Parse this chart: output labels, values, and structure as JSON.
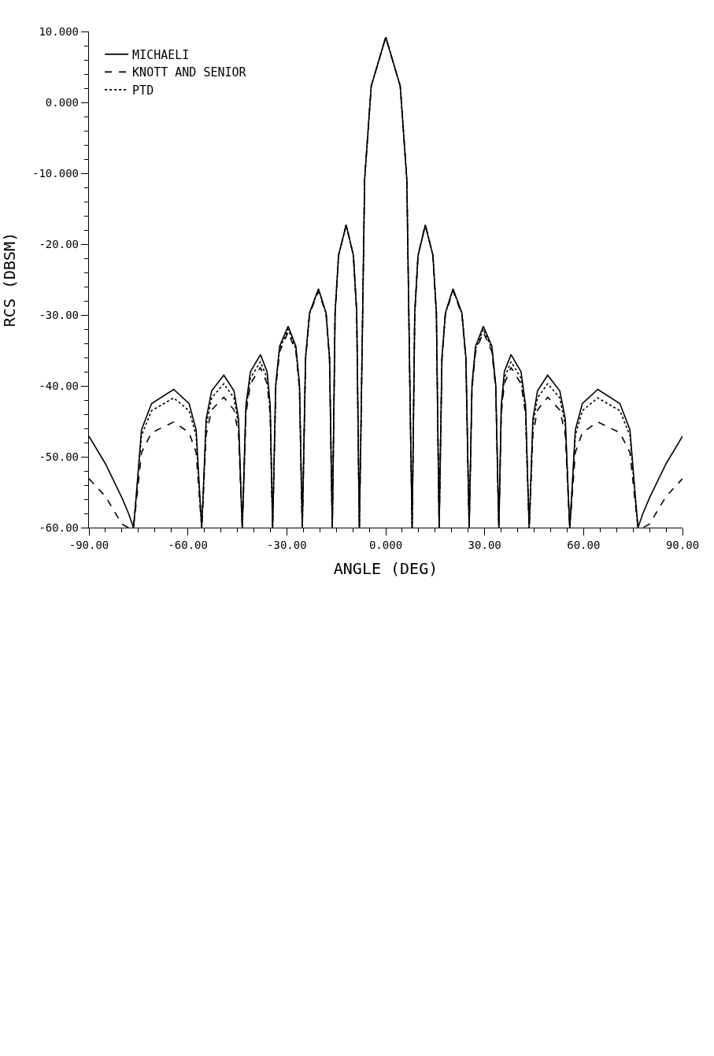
{
  "chart_data": {
    "type": "line",
    "xlabel": "ANGLE (DEG)",
    "ylabel": "RCS (DBSM)",
    "xlim": [
      -90,
      90
    ],
    "ylim": [
      -60,
      10
    ],
    "xticks": [
      {
        "value": -90,
        "label": "-90.00"
      },
      {
        "value": -85,
        "label": null
      },
      {
        "value": -80,
        "label": null
      },
      {
        "value": -75,
        "label": null
      },
      {
        "value": -70,
        "label": null
      },
      {
        "value": -65,
        "label": null
      },
      {
        "value": -60,
        "label": "-60.00"
      },
      {
        "value": -55,
        "label": null
      },
      {
        "value": -50,
        "label": null
      },
      {
        "value": -45,
        "label": null
      },
      {
        "value": -40,
        "label": null
      },
      {
        "value": -35,
        "label": null
      },
      {
        "value": -30,
        "label": "-30.00"
      },
      {
        "value": -25,
        "label": null
      },
      {
        "value": -20,
        "label": null
      },
      {
        "value": -15,
        "label": null
      },
      {
        "value": -10,
        "label": null
      },
      {
        "value": -5,
        "label": null
      },
      {
        "value": 0,
        "label": "0.000"
      },
      {
        "value": 5,
        "label": null
      },
      {
        "value": 10,
        "label": null
      },
      {
        "value": 15,
        "label": null
      },
      {
        "value": 20,
        "label": null
      },
      {
        "value": 25,
        "label": null
      },
      {
        "value": 30,
        "label": "30.00"
      },
      {
        "value": 35,
        "label": null
      },
      {
        "value": 40,
        "label": null
      },
      {
        "value": 45,
        "label": null
      },
      {
        "value": 50,
        "label": null
      },
      {
        "value": 55,
        "label": null
      },
      {
        "value": 60,
        "label": "60.00"
      },
      {
        "value": 65,
        "label": null
      },
      {
        "value": 70,
        "label": null
      },
      {
        "value": 75,
        "label": null
      },
      {
        "value": 80,
        "label": null
      },
      {
        "value": 85,
        "label": null
      },
      {
        "value": 90,
        "label": "90.00"
      }
    ],
    "yticks": [
      {
        "value": -60,
        "label": "-60.00"
      },
      {
        "value": -58,
        "label": null
      },
      {
        "value": -56,
        "label": null
      },
      {
        "value": -54,
        "label": null
      },
      {
        "value": -52,
        "label": null
      },
      {
        "value": -50,
        "label": "-50.00"
      },
      {
        "value": -48,
        "label": null
      },
      {
        "value": -46,
        "label": null
      },
      {
        "value": -44,
        "label": null
      },
      {
        "value": -42,
        "label": null
      },
      {
        "value": -40,
        "label": "-40.00"
      },
      {
        "value": -38,
        "label": null
      },
      {
        "value": -36,
        "label": null
      },
      {
        "value": -34,
        "label": null
      },
      {
        "value": -32,
        "label": null
      },
      {
        "value": -30,
        "label": "-30.00"
      },
      {
        "value": -28,
        "label": null
      },
      {
        "value": -26,
        "label": null
      },
      {
        "value": -24,
        "label": null
      },
      {
        "value": -22,
        "label": null
      },
      {
        "value": -20,
        "label": "-20.00"
      },
      {
        "value": -18,
        "label": null
      },
      {
        "value": -16,
        "label": null
      },
      {
        "value": -14,
        "label": null
      },
      {
        "value": -12,
        "label": null
      },
      {
        "value": -10,
        "label": "-10.000"
      },
      {
        "value": -8,
        "label": null
      },
      {
        "value": -6,
        "label": null
      },
      {
        "value": -4,
        "label": null
      },
      {
        "value": -2,
        "label": null
      },
      {
        "value": 0,
        "label": "0.000"
      },
      {
        "value": 2,
        "label": null
      },
      {
        "value": 4,
        "label": null
      },
      {
        "value": 6,
        "label": null
      },
      {
        "value": 8,
        "label": null
      },
      {
        "value": 10,
        "label": "10.000"
      }
    ],
    "legend": "top left",
    "marker": "none",
    "x": [
      -90,
      -85,
      -80,
      -78,
      -76.5,
      -75.77,
      -74.06,
      -71.01,
      -64.3,
      -59.63,
      -57.5,
      -56.31,
      -55.8,
      -55.4,
      -54.46,
      -52.79,
      -49.1,
      -46.02,
      -44.62,
      -43.84,
      -43.5,
      -43.17,
      -42.4,
      -41.03,
      -38,
      -35.97,
      -35.04,
      -34.52,
      -34.3,
      -34.02,
      -33.36,
      -32.19,
      -29.6,
      -27.24,
      -26.16,
      -25.56,
      -25.3,
      -25.01,
      -24.32,
      -23.1,
      -20.4,
      -18.09,
      -17.04,
      -16.45,
      -16.2,
      -15.95,
      -15.36,
      -14.31,
      -12,
      -9.8,
      -8.8,
      -8.24,
      -8,
      -7.52,
      -6.4,
      -4.4,
      0,
      4.4,
      6.4,
      7.52,
      8,
      8.24,
      8.8,
      9.8,
      12,
      14.31,
      15.36,
      15.95,
      16.2,
      16.45,
      17.04,
      18.09,
      20.4,
      23.1,
      24.32,
      25.01,
      25.3,
      25.56,
      26.16,
      27.24,
      29.6,
      32.19,
      33.36,
      34.02,
      34.3,
      34.52,
      35.04,
      35.97,
      38,
      41.03,
      42.4,
      43.17,
      43.5,
      43.84,
      44.62,
      46.02,
      49.1,
      52.79,
      54.46,
      55.4,
      55.8,
      56.31,
      57.5,
      59.63,
      64.3,
      71.01,
      74.06,
      75.77,
      76.5,
      78,
      80,
      85,
      90
    ],
    "series": [
      {
        "name": "MICHAELI",
        "color": "#000000",
        "line_style": "solid",
        "values": [
          -47.1,
          -51.0,
          -55.8,
          -58.0,
          -60,
          -56.1,
          -46.2,
          -42.5,
          -40.5,
          -42.5,
          -46.2,
          -56.1,
          -60,
          -55.7,
          -44.7,
          -40.7,
          -38.5,
          -40.7,
          -44.7,
          -55.7,
          -60,
          -55.1,
          -42.7,
          -38.0,
          -35.6,
          -38.0,
          -42.7,
          -55.1,
          -60,
          -54.3,
          -39.8,
          -34.4,
          -31.6,
          -34.4,
          -39.8,
          -54.3,
          -60,
          -53.3,
          -36.1,
          -29.7,
          -26.3,
          -29.7,
          -36.1,
          -53.3,
          -60,
          -51.5,
          -29.7,
          -21.6,
          -17.3,
          -21.6,
          -29.7,
          -51.5,
          -60,
          -46.2,
          -10.9,
          2.3,
          9.2,
          2.3,
          -10.9,
          -46.2,
          -60,
          -51.5,
          -29.7,
          -21.6,
          -17.3,
          -21.6,
          -29.7,
          -51.5,
          -60,
          -53.3,
          -36.1,
          -29.7,
          -26.3,
          -29.7,
          -36.1,
          -53.3,
          -60,
          -54.3,
          -39.8,
          -34.4,
          -31.6,
          -34.4,
          -39.8,
          -54.3,
          -60,
          -55.1,
          -42.7,
          -38.0,
          -35.6,
          -38.0,
          -42.7,
          -55.1,
          -60,
          -55.7,
          -44.7,
          -40.7,
          -38.5,
          -40.7,
          -44.7,
          -55.7,
          -60,
          -56.1,
          -46.2,
          -42.5,
          -40.5,
          -42.5,
          -46.2,
          -56.1,
          -60,
          -58.0,
          -55.8,
          -51.0,
          -47.1
        ]
      },
      {
        "name": "KNOTT AND SENIOR",
        "color": "#000000",
        "line_style": "dashed",
        "values": [
          -53.1,
          -55.6,
          -59.5,
          -60,
          -60,
          -57.0,
          -49.4,
          -46.6,
          -45.1,
          -46.6,
          -49.4,
          -57.0,
          -60,
          -56.3,
          -46.9,
          -43.4,
          -41.6,
          -43.4,
          -46.9,
          -56.3,
          -60,
          -55.5,
          -44.0,
          -39.7,
          -37.4,
          -39.7,
          -44.0,
          -55.5,
          -60,
          -54.5,
          -40.4,
          -35.2,
          -32.4,
          -35.2,
          -40.4,
          -54.5,
          -60,
          -53.3,
          -36.3,
          -29.9,
          -26.6,
          -29.9,
          -36.3,
          -53.3,
          -60,
          -51.5,
          -29.7,
          -21.6,
          -17.3,
          -21.6,
          -29.7,
          -51.5,
          -60,
          -46.2,
          -10.9,
          2.3,
          9.2,
          2.3,
          -10.9,
          -46.2,
          -60,
          -51.5,
          -29.7,
          -21.6,
          -17.3,
          -21.6,
          -29.7,
          -51.5,
          -60,
          -53.3,
          -36.3,
          -29.9,
          -26.6,
          -29.9,
          -36.3,
          -53.3,
          -60,
          -54.5,
          -40.4,
          -35.2,
          -32.4,
          -35.2,
          -40.4,
          -54.5,
          -60,
          -55.5,
          -44.0,
          -39.7,
          -37.4,
          -39.7,
          -44.0,
          -55.5,
          -60,
          -56.3,
          -46.9,
          -43.4,
          -41.6,
          -43.4,
          -46.9,
          -56.3,
          -60,
          -57.0,
          -49.4,
          -46.6,
          -45.1,
          -46.6,
          -49.4,
          -57.0,
          -60,
          -60,
          -59.5,
          -55.6,
          -53.1
        ]
      },
      {
        "name": "PTD",
        "color": "#000000",
        "line_style": "dotted",
        "values": [
          null,
          null,
          null,
          null,
          -60,
          -56.3,
          -47.0,
          -43.5,
          -41.7,
          -43.5,
          -47.0,
          -56.3,
          -60,
          -55.9,
          -45.6,
          -41.7,
          -39.7,
          -41.7,
          -45.6,
          -55.9,
          -60,
          -55.3,
          -43.4,
          -38.9,
          -36.6,
          -38.9,
          -43.4,
          -55.3,
          -60,
          -54.4,
          -40.1,
          -34.8,
          -32.0,
          -34.8,
          -40.1,
          -54.4,
          -60,
          -53.3,
          -36.1,
          -29.8,
          -26.4,
          -29.8,
          -36.1,
          -53.3,
          -60,
          -51.5,
          -29.7,
          -21.6,
          -17.3,
          -21.6,
          -29.7,
          -51.5,
          -60,
          -46.2,
          -10.9,
          2.3,
          9.2,
          2.3,
          -10.9,
          -46.2,
          -60,
          -51.5,
          -29.7,
          -21.6,
          -17.3,
          -21.6,
          -29.7,
          -51.5,
          -60,
          -53.3,
          -36.1,
          -29.8,
          -26.4,
          -29.8,
          -36.1,
          -53.3,
          -60,
          -54.4,
          -40.1,
          -34.8,
          -32.0,
          -34.8,
          -40.1,
          -54.4,
          -60,
          -55.3,
          -43.4,
          -38.9,
          -36.6,
          -38.9,
          -43.4,
          -55.3,
          -60,
          -55.9,
          -45.6,
          -41.7,
          -39.7,
          -41.7,
          -45.6,
          -55.9,
          -60,
          -56.3,
          -47.0,
          -43.5,
          -41.7,
          -43.5,
          -47.0,
          -56.3,
          -60,
          null,
          null,
          null,
          null
        ]
      }
    ]
  }
}
